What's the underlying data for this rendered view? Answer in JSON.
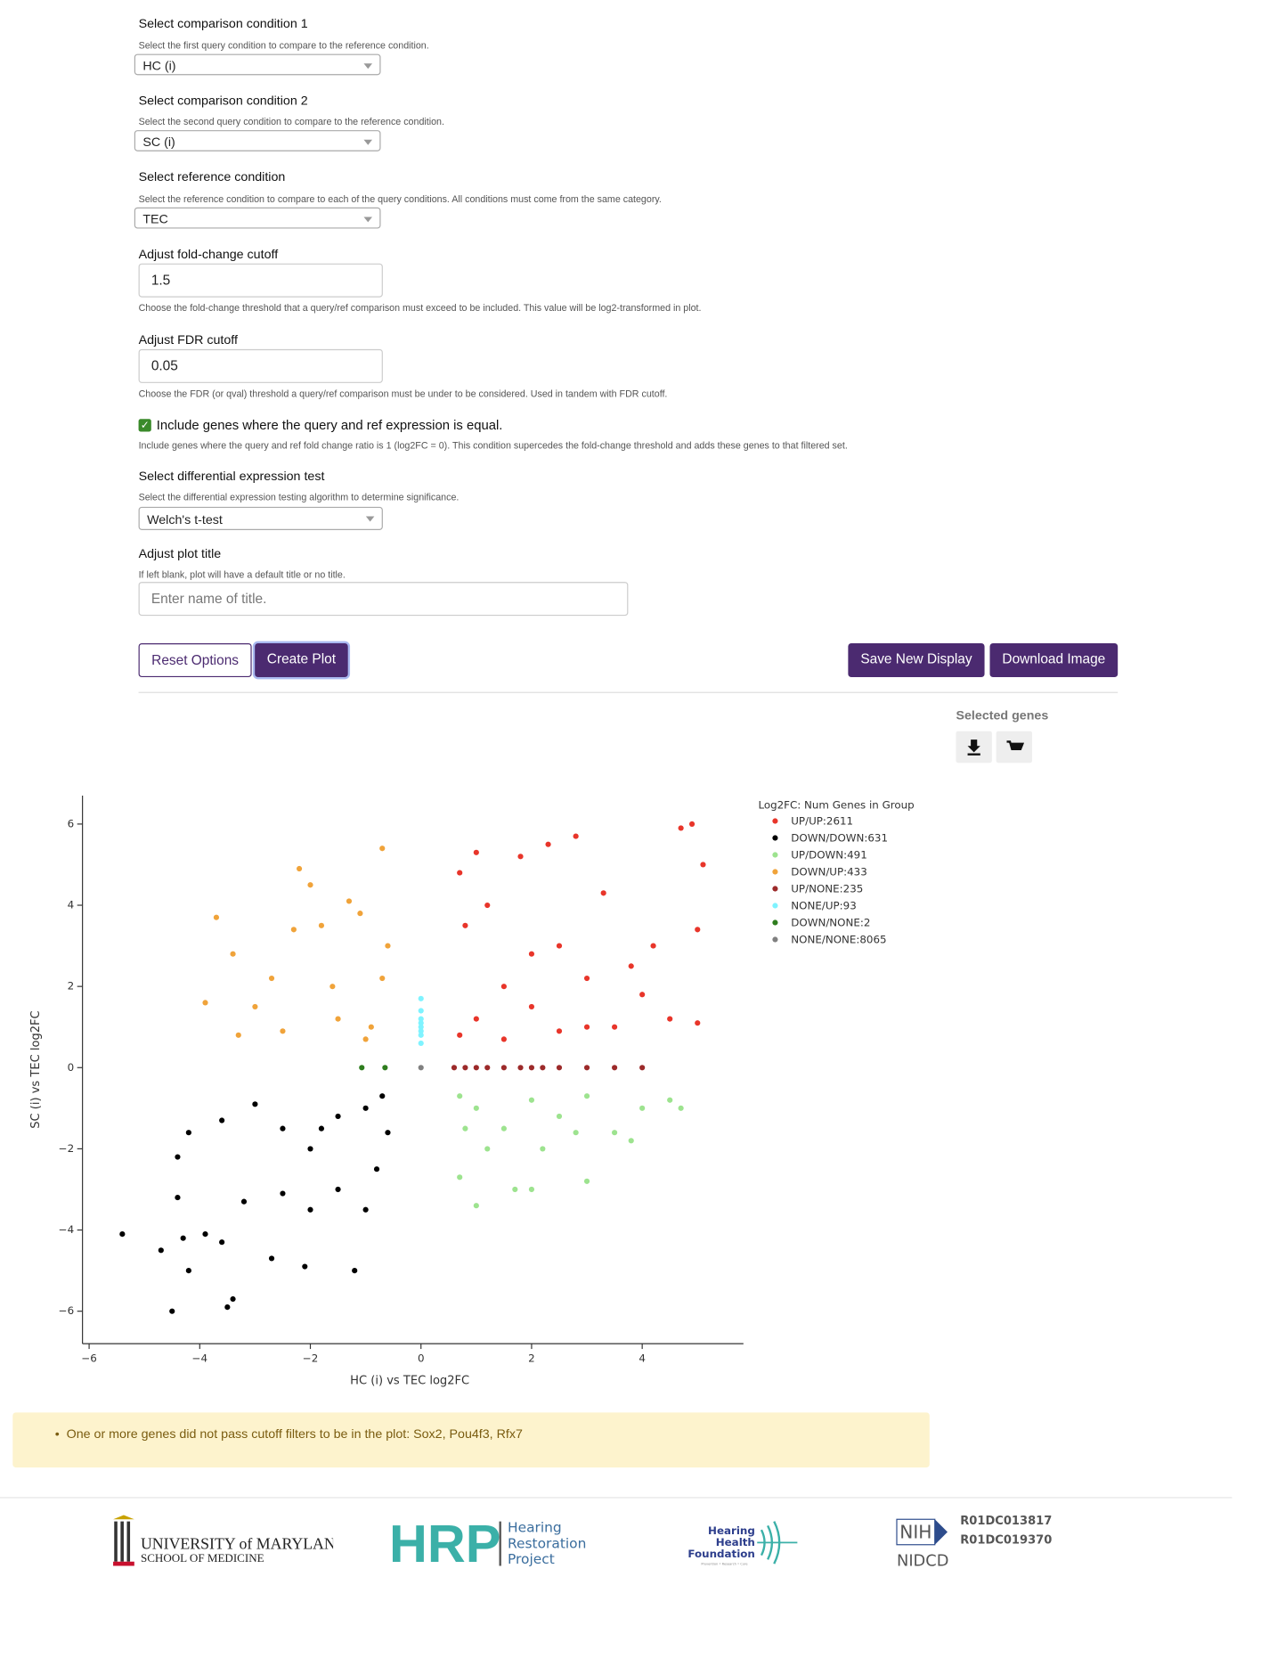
{
  "form": {
    "fields": [
      {
        "label": "Select comparison condition 1",
        "help": "Select the first query condition to compare to the reference condition.",
        "value": "HC (i)"
      },
      {
        "label": "Select comparison condition 2",
        "help": "Select the second query condition to compare to the reference condition.",
        "value": "SC (i)"
      },
      {
        "label": "Select reference condition",
        "help": "Select the reference condition to compare to each of the query conditions. All conditions must come from the same category.",
        "value": "TEC"
      },
      {
        "label": "Adjust fold-change cutoff",
        "value": "1.5",
        "help": "Choose the fold-change threshold that a query/ref comparison must exceed to be included. This value will be log2-transformed in plot."
      },
      {
        "label": "Adjust FDR cutoff",
        "value": "0.05",
        "help": "Choose the FDR (or qval) threshold a query/ref comparison must be under to be considered. Used in tandem with FDR cutoff."
      },
      {
        "label": "Select differential expression test",
        "help": "Select the differential expression testing algorithm to determine significance.",
        "value": "Welch's t-test"
      },
      {
        "label": "Adjust plot title",
        "help": "If left blank, plot will have a default title or no title.",
        "placeholder": "Enter name of title."
      }
    ],
    "checkbox": {
      "label": "Include genes where the query and ref expression is equal.",
      "help": "Include genes where the query and ref fold change ratio is 1 (log2FC = 0). This condition supercedes the fold-change threshold and adds these genes to that filtered set.",
      "checked": true
    }
  },
  "buttons": [
    "Reset Options",
    "Create Plot",
    "Save New Display",
    "Download Image"
  ],
  "selected_genes": "Selected genes",
  "chart_data": {
    "type": "scatter",
    "xlabel": "HC (i) vs TEC log2FC",
    "ylabel": "SC (i) vs TEC log2FC",
    "legend_title": "Log2FC: Num Genes in Group",
    "xlim": [
      -6.12,
      5.83
    ],
    "ylim": [
      -6.8,
      6.7
    ],
    "xticks": [
      {
        "value": -6,
        "label": "−6"
      },
      {
        "value": -4,
        "label": "−4"
      },
      {
        "value": -2,
        "label": "−2"
      },
      0,
      2,
      4
    ],
    "yticks": [
      {
        "value": -6,
        "label": "−6"
      },
      {
        "value": -4,
        "label": "−4"
      },
      {
        "value": -2,
        "label": "−2"
      },
      0,
      2,
      4,
      6
    ],
    "series": [
      {
        "name": "UP/UP:2611",
        "color": "#e8352a",
        "x": [
          0.7,
          1,
          1.5,
          2,
          2.5,
          3,
          3.5,
          4,
          4.5,
          0.8,
          1.2,
          1.8,
          2.3,
          2.8,
          3.3,
          4.9,
          4.7,
          5.1,
          5,
          4.2,
          1,
          0.7,
          2,
          3,
          5,
          1.5,
          2.5,
          3.8
        ],
        "values": [
          0.8,
          1.2,
          2,
          1.5,
          3,
          2.2,
          1,
          1.8,
          1.2,
          3.5,
          4,
          5.2,
          5.5,
          5.7,
          4.3,
          6,
          5.9,
          5,
          3.4,
          3,
          5.3,
          4.8,
          2.8,
          1,
          1.1,
          0.7,
          0.9,
          2.5
        ]
      },
      {
        "name": "DOWN/DOWN:631",
        "color": "#000000",
        "x": [
          -5.4,
          -4.7,
          -4.5,
          -4.2,
          -3.5,
          -3.4,
          -4.3,
          -3.9,
          -3.6,
          -2.7,
          -2.1,
          -1.2,
          -4.4,
          -4.4,
          -4.2,
          -3.6,
          -3.2,
          -2.5,
          -2,
          -1.5,
          -1,
          -1,
          -0.7,
          -1.5,
          -2,
          -2.5,
          -3,
          -0.8,
          -1.8,
          -0.6
        ],
        "values": [
          -4.1,
          -4.5,
          -6,
          -5,
          -5.9,
          -5.7,
          -4.2,
          -4.1,
          -4.3,
          -4.7,
          -4.9,
          -5,
          -3.2,
          -2.2,
          -1.6,
          -1.3,
          -3.3,
          -3.1,
          -3.5,
          -3,
          -3.5,
          -1,
          -0.7,
          -1.2,
          -2,
          -1.5,
          -0.9,
          -2.5,
          -1.5,
          -1.6
        ]
      },
      {
        "name": "UP/DOWN:491",
        "color": "#9de38f",
        "x": [
          0.7,
          1,
          1.5,
          2,
          2.5,
          3,
          3.5,
          4,
          4.7,
          4.5,
          0.7,
          1,
          1.7,
          2,
          3,
          2.2,
          1.2,
          0.8,
          3.8,
          2.8
        ],
        "values": [
          -0.7,
          -1,
          -1.5,
          -0.8,
          -1.2,
          -0.7,
          -1.6,
          -1,
          -1,
          -0.8,
          -2.7,
          -3.4,
          -3,
          -3,
          -2.8,
          -2,
          -2,
          -1.5,
          -1.8,
          -1.6
        ]
      },
      {
        "name": "DOWN/UP:433",
        "color": "#f0a33a",
        "x": [
          -3.9,
          -3.7,
          -3.4,
          -3.3,
          -3,
          -2.7,
          -2.3,
          -2.2,
          -2,
          -1.8,
          -1.6,
          -1.3,
          -1.1,
          -0.7,
          -0.6,
          -0.9,
          -1.5,
          -2.5,
          -0.7,
          -1
        ],
        "values": [
          1.6,
          3.7,
          2.8,
          0.8,
          1.5,
          2.2,
          3.4,
          4.9,
          4.5,
          3.5,
          2,
          4.1,
          3.8,
          5.4,
          3,
          1,
          1.2,
          0.9,
          2.2,
          0.7
        ]
      },
      {
        "name": "UP/NONE:235",
        "color": "#9c2a2a",
        "x": [
          0.6,
          0.8,
          1,
          1.2,
          1.5,
          1.8,
          2,
          2.2,
          2.5,
          3,
          3.5,
          4
        ],
        "values": [
          0,
          0,
          0,
          0,
          0,
          0,
          0,
          0,
          0,
          0,
          0,
          0
        ]
      },
      {
        "name": "NONE/UP:93",
        "color": "#7ff3ff",
        "x": [
          0,
          0,
          0,
          0,
          0,
          0,
          0,
          0
        ],
        "values": [
          0.6,
          0.8,
          0.9,
          1,
          1.1,
          1.2,
          1.4,
          1.7
        ]
      },
      {
        "name": "DOWN/NONE:2",
        "color": "#2e7d1e",
        "x": [
          -1.07,
          -0.65
        ],
        "values": [
          0,
          0
        ]
      },
      {
        "name": "NONE/NONE:8065",
        "color": "#808080",
        "x": [
          0
        ],
        "values": [
          0
        ]
      }
    ]
  },
  "alert": "One or more genes did not pass cutoff filters to be in the plot: Sox2, Pou4f3, Rfx7",
  "footer": {
    "umd": [
      "UNIVERSITY of MARYLAND",
      "SCHOOL OF MEDICINE"
    ],
    "hrp": [
      "HRP",
      "Hearing",
      "Restoration",
      "Project"
    ],
    "hhf": [
      "Hearing",
      "Health",
      "Foundation",
      "Prevention • Research • Cure"
    ],
    "nih": [
      "NIH",
      "NIDCD",
      "R01DC013817",
      "R01DC019370"
    ]
  }
}
